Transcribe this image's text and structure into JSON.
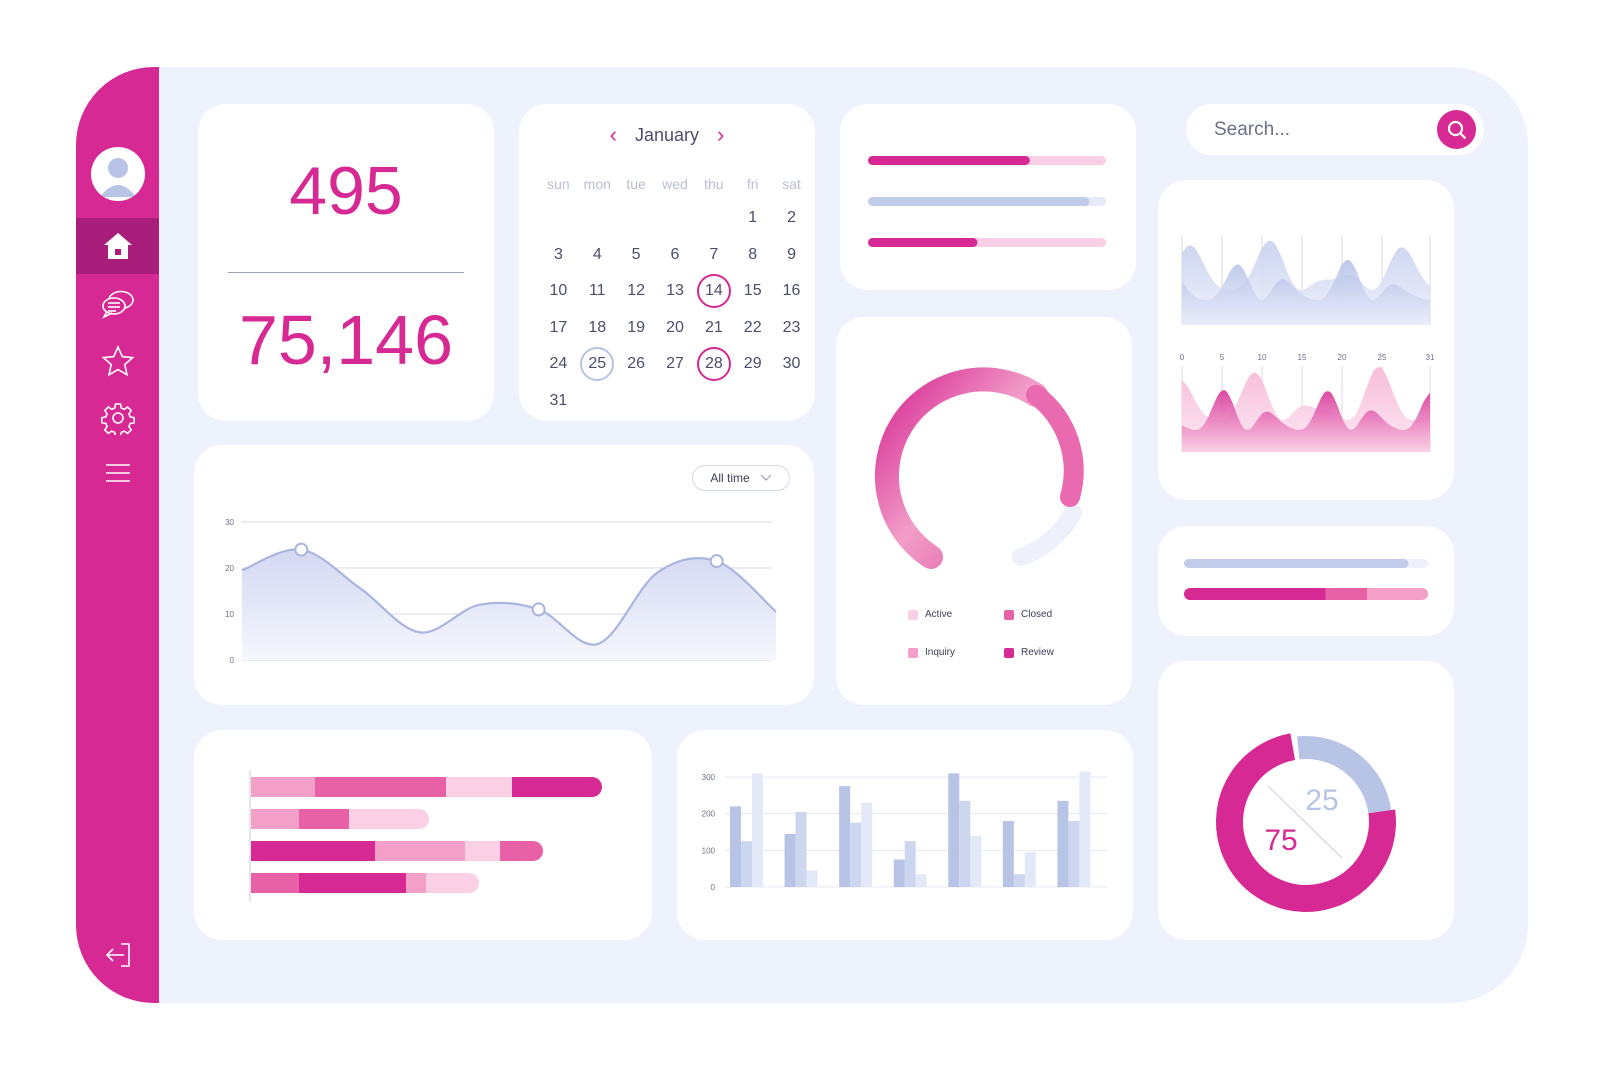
{
  "stats": {
    "primary": "495",
    "secondary": "75,146"
  },
  "calendar": {
    "month": "January",
    "weekdays": [
      "sun",
      "mon",
      "tue",
      "wed",
      "thu",
      "fri",
      "sat"
    ],
    "lead_blanks": 5,
    "days": 31,
    "highlighted_pink": [
      14,
      28
    ],
    "highlighted_blue": [
      25
    ]
  },
  "progress_top": [
    {
      "value": 0.68,
      "color": "#d62993",
      "track": "#f8cfe4"
    },
    {
      "value": 0.93,
      "color": "#c2cbea",
      "track": "#e6eaf6"
    },
    {
      "value": 0.46,
      "color": "#d62993",
      "track": "#f8cfe4"
    }
  ],
  "search": {
    "placeholder": "Search..."
  },
  "wave_chart": {
    "x_ticks": [
      "0",
      "5",
      "10",
      "15",
      "20",
      "25",
      "31"
    ]
  },
  "progress_mid": {
    "blue": 0.92,
    "segments": [
      0.58,
      0.17,
      0.25
    ]
  },
  "line_chart": {
    "filter_label": "All time",
    "y_ticks": [
      "30",
      "20",
      "10",
      "0"
    ],
    "chart_data": {
      "type": "area",
      "ylim": [
        0,
        30
      ],
      "x": [
        0,
        1,
        2,
        3,
        4,
        5,
        6,
        7,
        8,
        9
      ],
      "y": [
        19.5,
        24,
        15.5,
        6,
        12,
        11,
        3.5,
        19,
        21.5,
        10.5
      ],
      "markers": [
        1,
        5,
        8
      ]
    }
  },
  "donut_gauge": {
    "legend": [
      {
        "label": "Active",
        "color": "#fbd0e4"
      },
      {
        "label": "Closed",
        "color": "#e860a5"
      },
      {
        "label": "Inquiry",
        "color": "#f29ec8"
      },
      {
        "label": "Review",
        "color": "#d62993"
      }
    ]
  },
  "hbar_chart": {
    "chart_data": {
      "type": "bar",
      "orientation": "horizontal",
      "rows": [
        [
          {
            "v": 64,
            "c": "#f39fc8"
          },
          {
            "v": 131,
            "c": "#e860a5"
          },
          {
            "v": 66,
            "c": "#fbd0e4"
          },
          {
            "v": 90,
            "c": "#d62993"
          }
        ],
        [
          {
            "v": 48,
            "c": "#f39fc8"
          },
          {
            "v": 50,
            "c": "#e860a5"
          },
          {
            "v": 80,
            "c": "#fbd0e4"
          }
        ],
        [
          {
            "v": 124,
            "c": "#d62993"
          },
          {
            "v": 90,
            "c": "#f39fc8"
          },
          {
            "v": 35,
            "c": "#fbd0e4"
          },
          {
            "v": 43,
            "c": "#e860a5"
          }
        ],
        [
          {
            "v": 48,
            "c": "#e860a5"
          },
          {
            "v": 107,
            "c": "#d62993"
          },
          {
            "v": 20,
            "c": "#f39fc8"
          },
          {
            "v": 53,
            "c": "#fbd0e4"
          }
        ]
      ]
    }
  },
  "vbar_chart": {
    "y_ticks": [
      "300",
      "200",
      "100",
      "0"
    ],
    "chart_data": {
      "type": "bar",
      "ylim": [
        0,
        300
      ],
      "series": [
        {
          "values": [
            220,
            145,
            275,
            75,
            310,
            180,
            235
          ]
        },
        {
          "values": [
            125,
            205,
            175,
            125,
            235,
            35,
            180
          ]
        },
        {
          "values": [
            310,
            45,
            230,
            35,
            140,
            95,
            315
          ]
        }
      ],
      "colors": [
        "#b8c4e6",
        "#cdd6ef",
        "#e4e9f7"
      ]
    }
  },
  "donut_split": {
    "chart_data": {
      "type": "pie",
      "values": [
        75,
        25
      ],
      "labels": [
        "75",
        "25"
      ],
      "colors": [
        "#d62993",
        "#b8c4e6"
      ]
    }
  }
}
